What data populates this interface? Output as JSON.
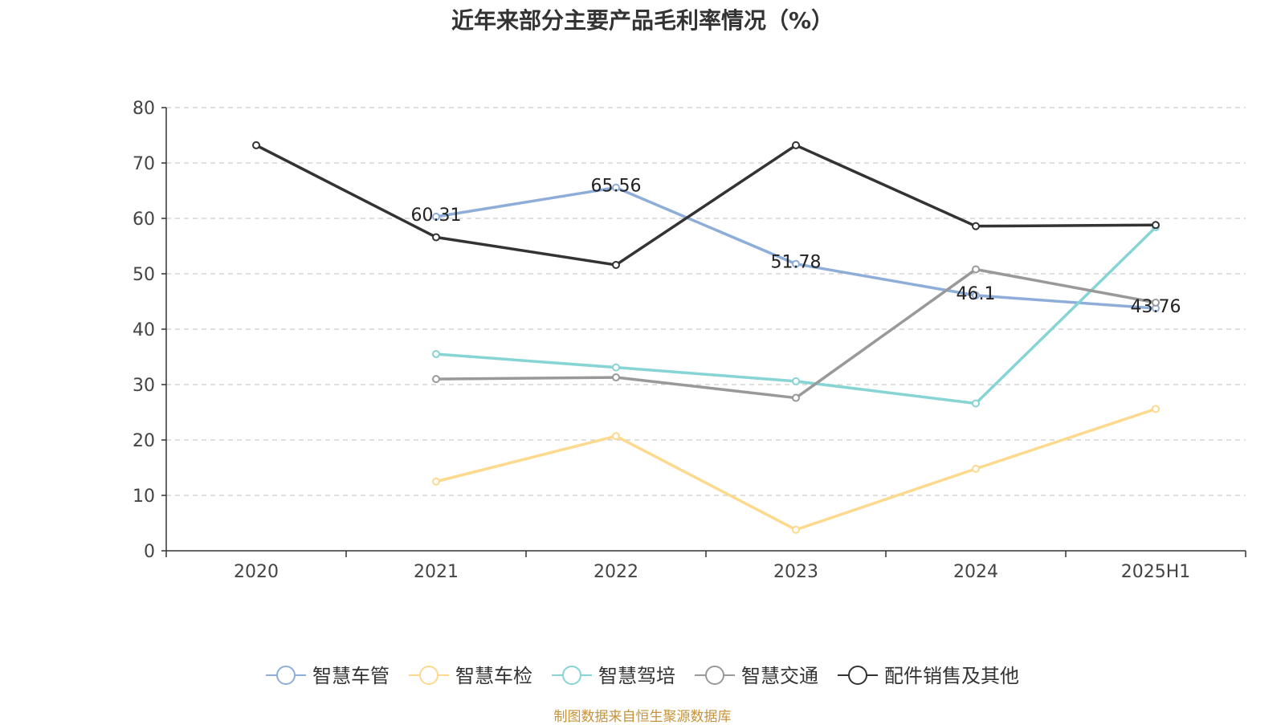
{
  "chart_data": {
    "type": "line",
    "title": "近年来部分主要产品毛利率情况（%）",
    "xlabel": "",
    "ylabel": "",
    "categories": [
      "2020",
      "2021",
      "2022",
      "2023",
      "2024",
      "2025H1"
    ],
    "ylim": [
      0,
      80
    ],
    "yticks": [
      0,
      10,
      20,
      30,
      40,
      50,
      60,
      70,
      80
    ],
    "grid": true,
    "legend_position": "bottom",
    "series": [
      {
        "name": "智慧车管",
        "color": "#8eaed9",
        "values": [
          null,
          60.31,
          65.56,
          51.78,
          46.1,
          43.76
        ],
        "labels": [
          null,
          "60.31",
          "65.56",
          "51.78",
          "46.1",
          "43.76"
        ]
      },
      {
        "name": "智慧车检",
        "color": "#fdd98e",
        "values": [
          null,
          12.5,
          20.7,
          3.8,
          14.8,
          25.6
        ],
        "labels": [
          null,
          null,
          null,
          null,
          null,
          null
        ]
      },
      {
        "name": "智慧驾培",
        "color": "#86d4d4",
        "values": [
          null,
          35.5,
          33.1,
          30.6,
          26.6,
          58.4
        ],
        "labels": [
          null,
          null,
          null,
          null,
          null,
          null
        ]
      },
      {
        "name": "智慧交通",
        "color": "#999999",
        "values": [
          null,
          31.0,
          31.3,
          27.6,
          50.8,
          44.8
        ],
        "labels": [
          null,
          null,
          null,
          null,
          null,
          null
        ]
      },
      {
        "name": "配件销售及其他",
        "color": "#333333",
        "values": [
          73.2,
          56.6,
          51.6,
          73.2,
          58.6,
          58.8
        ],
        "labels": [
          null,
          null,
          null,
          null,
          null,
          null
        ]
      }
    ]
  },
  "source": "制图数据来自恒生聚源数据库"
}
